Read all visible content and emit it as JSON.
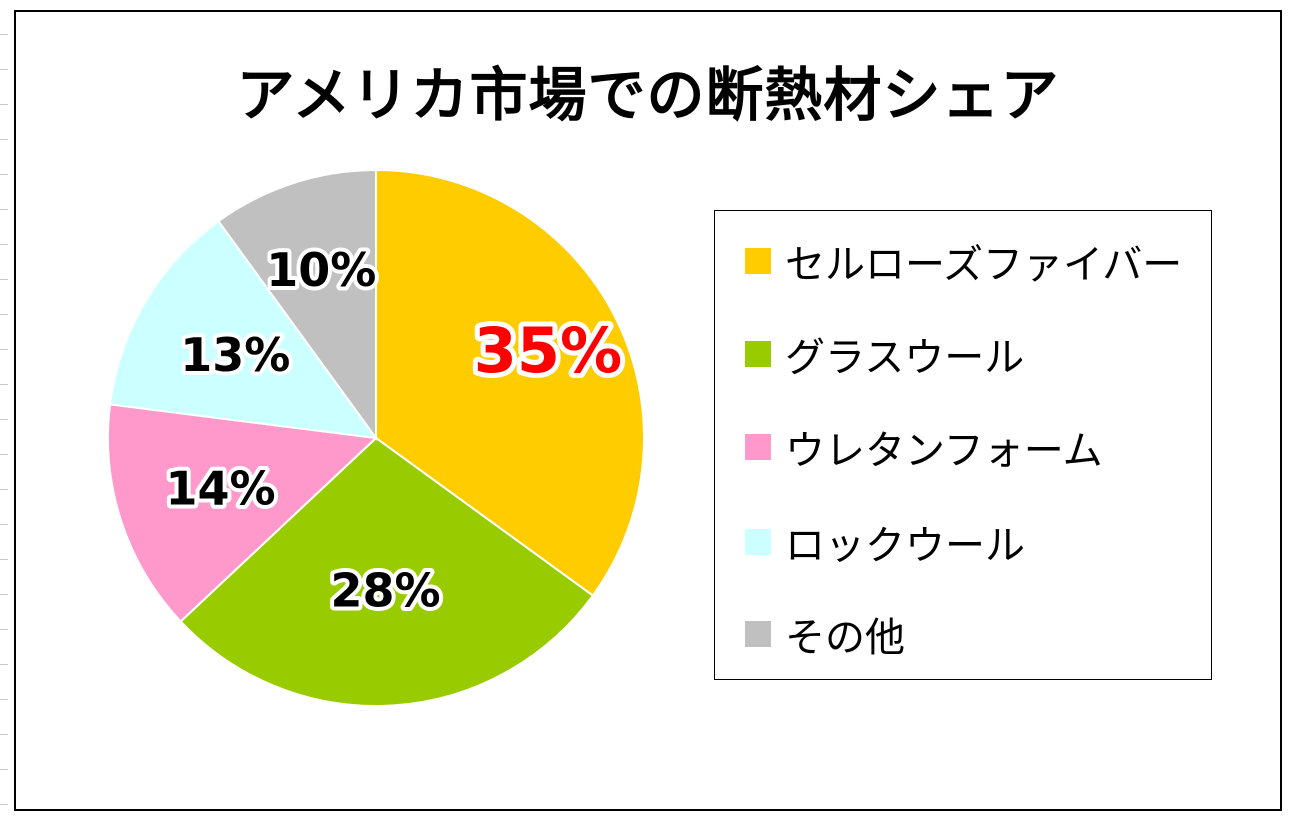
{
  "chart_data": {
    "type": "pie",
    "title": "アメリカ市場での断熱材シェア",
    "categories": [
      "セルローズファイバー",
      "グラスウール",
      "ウレタンフォーム",
      "ロックウール",
      "その他"
    ],
    "values": [
      35,
      28,
      14,
      13,
      10
    ],
    "data_labels": [
      "35%",
      "28%",
      "14%",
      "13%",
      "10%"
    ],
    "colors": [
      "#FFCC00",
      "#99CC00",
      "#FF99CC",
      "#CCFFFF",
      "#C0C0C0"
    ],
    "highlight_label_color": "#FF0000",
    "start_angle": "12 o'clock",
    "direction": "clockwise",
    "legend_position": "right"
  }
}
